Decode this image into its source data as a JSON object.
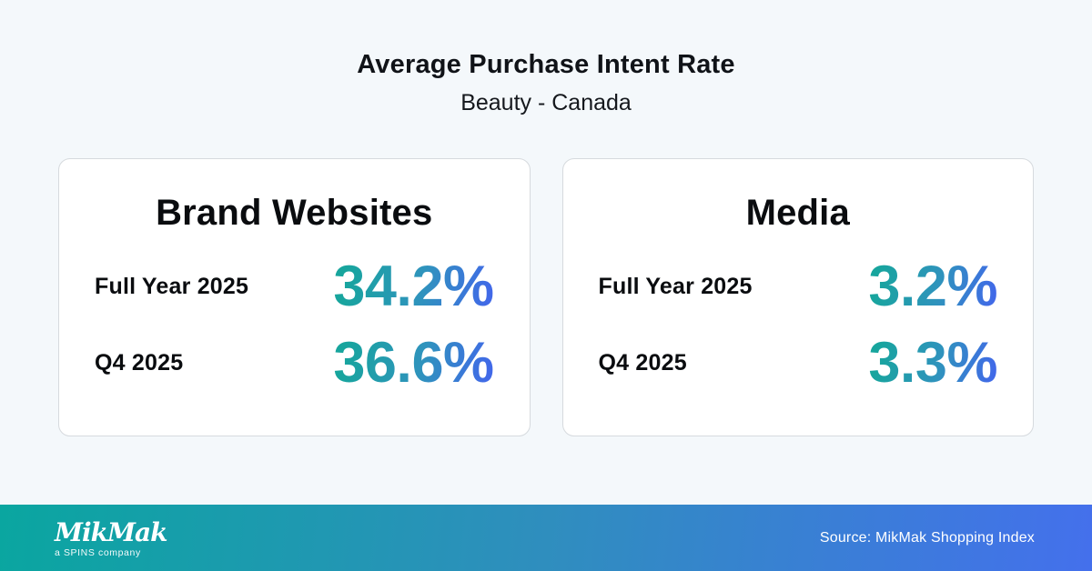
{
  "header": {
    "title": "Average Purchase Intent Rate",
    "subtitle": "Beauty - Canada"
  },
  "cards": [
    {
      "title": "Brand Websites",
      "rows": [
        {
          "label": "Full Year 2025",
          "value": "34.2%"
        },
        {
          "label": "Q4 2025",
          "value": "36.6%"
        }
      ]
    },
    {
      "title": "Media",
      "rows": [
        {
          "label": "Full Year 2025",
          "value": "3.2%"
        },
        {
          "label": "Q4 2025",
          "value": "3.3%"
        }
      ]
    }
  ],
  "footer": {
    "logo_text": "MikMak",
    "logo_subtext": "a SPINS company",
    "source": "Source: MikMak Shopping Index"
  },
  "colors": {
    "page_background": "#f4f8fb",
    "card_background": "#ffffff",
    "card_border": "#d6dade",
    "value_gradient_start": "#17a59d",
    "value_gradient_end": "#4169e8",
    "footer_gradient_start": "#0aa6a0",
    "footer_gradient_end": "#4470ec",
    "text_dark": "#0a0c0f",
    "footer_text": "#ffffff"
  },
  "chart_data": {
    "type": "table",
    "title": "Average Purchase Intent Rate",
    "subtitle": "Beauty - Canada",
    "categories": [
      "Full Year 2025",
      "Q4 2025"
    ],
    "series": [
      {
        "name": "Brand Websites",
        "values": [
          34.2,
          36.6
        ]
      },
      {
        "name": "Media",
        "values": [
          3.2,
          3.3
        ]
      }
    ],
    "unit": "%",
    "source": "Source: MikMak Shopping Index"
  }
}
